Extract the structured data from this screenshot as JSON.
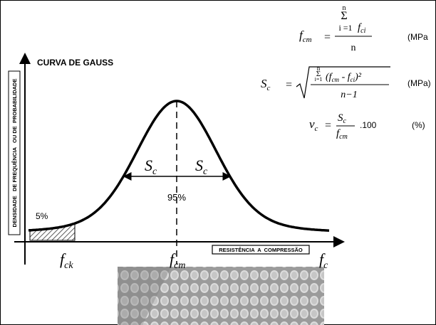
{
  "title": "CURVA DE GAUSS",
  "axes": {
    "y_label": "DENSIDADE   DE FREQUÊNCIA   OU DE  PROBABILIDADE",
    "x_label": "RESISTÊNCIA  A  COMPRESSÃO",
    "x_symbol": {
      "base": "f",
      "sub": "c"
    }
  },
  "markers": [
    {
      "base": "f",
      "sub": "ck"
    },
    {
      "base": "f",
      "sub": "cm"
    }
  ],
  "spread": {
    "left": {
      "base": "S",
      "sub": "c"
    },
    "right": {
      "base": "S",
      "sub": "c"
    },
    "percent": "95%"
  },
  "tail": "5%",
  "formulas": {
    "mean": {
      "lhs_base": "f",
      "lhs_sub": "cm",
      "eq": "=",
      "sum_top": "n",
      "sum_sign": "Σ",
      "sum_bottom": "i =1",
      "term_base": "f",
      "term_sub": "ci",
      "denominator": "n",
      "unit": "(MPa"
    },
    "std": {
      "lhs_base": "S",
      "lhs_sub": "c",
      "eq": "=",
      "sum_top": "n",
      "sum_sign": "Σ",
      "sum_bottom": "i=1",
      "open": "(f",
      "cm": "cm",
      "minus": " - f",
      "ci": "ci",
      "close": ")²",
      "denominator": "n−1",
      "unit": "(MPa)"
    },
    "cv": {
      "lhs_base": "v",
      "lhs_sub": "c",
      "eq": "=",
      "num_base": "S",
      "num_sub": "c",
      "den_base": "f",
      "den_sub": "cm",
      "factor": ".100",
      "unit": "(%)"
    }
  }
}
